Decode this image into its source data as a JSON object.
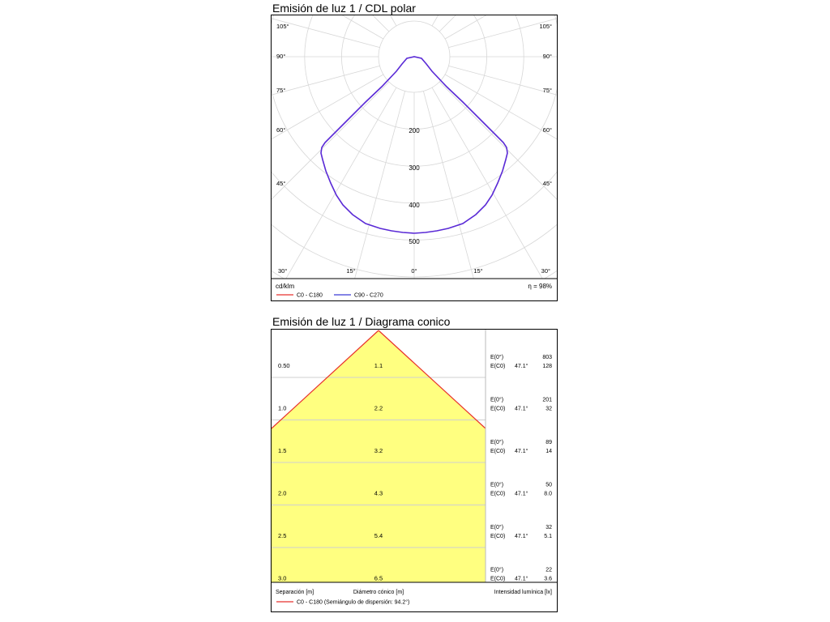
{
  "polar": {
    "title": "Emisión de luz 1 / CDL polar",
    "unit": "cd/klm",
    "efficiency": "η = 98%",
    "legend": [
      {
        "label": "C0 - C180",
        "color": "#e8322d"
      },
      {
        "label": "C90 - C270",
        "color": "#3a3ad6"
      }
    ],
    "radial_labels": [
      "200",
      "300",
      "400",
      "500"
    ],
    "angle_labels": {
      "right": [
        "105°",
        "90°",
        "75°",
        "60°",
        "45°",
        "30°"
      ],
      "left": [
        "105°",
        "90°",
        "75°",
        "60°",
        "45°",
        "30°"
      ],
      "bottom": [
        "15°",
        "0°",
        "15°"
      ]
    }
  },
  "cone": {
    "title": "Emisión de luz 1 / Diagrama conico",
    "rows": [
      {
        "separation": "0.50",
        "diameter": "1.1",
        "e0": "803",
        "ec0": "128",
        "angle": "47.1°"
      },
      {
        "separation": "1.0",
        "diameter": "2.2",
        "e0": "201",
        "ec0": "32",
        "angle": "47.1°"
      },
      {
        "separation": "1.5",
        "diameter": "3.2",
        "e0": "89",
        "ec0": "14",
        "angle": "47.1°"
      },
      {
        "separation": "2.0",
        "diameter": "4.3",
        "e0": "50",
        "ec0": "8.0",
        "angle": "47.1°"
      },
      {
        "separation": "2.5",
        "diameter": "5.4",
        "e0": "32",
        "ec0": "5.1",
        "angle": "47.1°"
      },
      {
        "separation": "3.0",
        "diameter": "6.5",
        "e0": "22",
        "ec0": "3.6",
        "angle": "47.1°"
      }
    ],
    "e0_label": "E(0°)",
    "ec0_label": "E(C0)",
    "footer": {
      "separation": "Separación [m]",
      "diameter": "Diámetro cónico [m]",
      "illuminance": "Intensidad lumínica [lx]"
    },
    "legend": {
      "label": "C0 - C180 (Semiángulo de dispersión: 94.2°)",
      "color": "#e8322d"
    },
    "fill_color": "#ffff80"
  }
}
